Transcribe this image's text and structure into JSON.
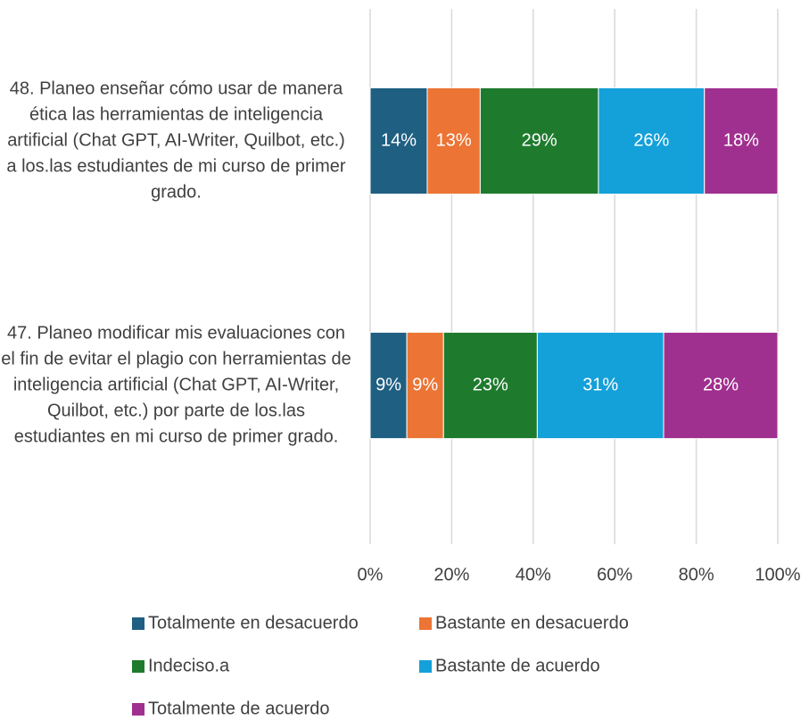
{
  "chart_data": {
    "type": "stacked_bar_horizontal",
    "categories": [
      "48. Planeo enseñar cómo usar de manera ética las herramientas de inteligencia artificial (Chat GPT, AI-Writer, Quilbot, etc.) a los.las estudiantes de mi curso de primer grado.",
      "47. Planeo modificar mis evaluaciones con el fin de evitar el plagio con herramientas de inteligencia artificial (Chat GPT, AI-Writer, Quilbot, etc.) por parte de los.las estudiantes en mi curso de primer grado."
    ],
    "series": [
      {
        "name": "Totalmente en desacuerdo",
        "color": "#1f5f82",
        "values": [
          14,
          9
        ],
        "value_labels": [
          "14%",
          "9%"
        ]
      },
      {
        "name": "Bastante en desacuerdo",
        "color": "#ec7434",
        "values": [
          13,
          9
        ],
        "value_labels": [
          "13%",
          "9%"
        ]
      },
      {
        "name": "Indeciso.a",
        "color": "#1e7b2d",
        "values": [
          29,
          23
        ],
        "value_labels": [
          "29%",
          "23%"
        ]
      },
      {
        "name": "Bastante de acuerdo",
        "color": "#14a0d9",
        "values": [
          26,
          31
        ],
        "value_labels": [
          "26%",
          "31%"
        ]
      },
      {
        "name": "Totalmente de acuerdo",
        "color": "#a0308f",
        "values": [
          18,
          28
        ],
        "value_labels": [
          "18%",
          "28%"
        ]
      }
    ],
    "xlim": [
      0,
      100
    ],
    "xticks": [
      {
        "value": 0,
        "label": "0%"
      },
      {
        "value": 20,
        "label": "20%"
      },
      {
        "value": 40,
        "label": "40%"
      },
      {
        "value": 60,
        "label": "60%"
      },
      {
        "value": 80,
        "label": "80%"
      },
      {
        "value": 100,
        "label": "100%"
      }
    ],
    "grid": true,
    "legend": "bottom"
  }
}
